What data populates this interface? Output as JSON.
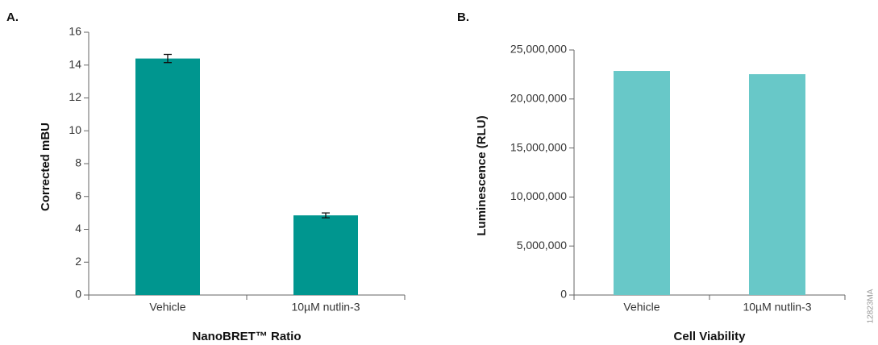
{
  "chart_data": [
    {
      "type": "bar",
      "panel": "A.",
      "xlabel": "NanoBRET™ Ratio",
      "ylabel": "Corrected mBU",
      "categories": [
        "Vehicle",
        "10µM nutlin-3"
      ],
      "values": [
        14.4,
        4.85
      ],
      "errors": [
        0.25,
        0.15
      ],
      "color": "#00968f",
      "ylim": [
        0,
        16
      ],
      "yticks": [
        0,
        2,
        4,
        6,
        8,
        10,
        12,
        14,
        16
      ]
    },
    {
      "type": "bar",
      "panel": "B.",
      "xlabel": "Cell Viability",
      "ylabel": "Luminescence (RLU)",
      "categories": [
        "Vehicle",
        "10µM nutlin-3"
      ],
      "values": [
        22860000,
        22530000
      ],
      "color": "#68c8c8",
      "ylim": [
        0,
        25000000
      ],
      "yticks": [
        0,
        {
          "value": 5000000,
          "label": "5,000,000"
        },
        {
          "value": 10000000,
          "label": "10,000,000"
        },
        {
          "value": 15000000,
          "label": "15,000,000"
        },
        {
          "value": 20000000,
          "label": "20,000,000"
        },
        {
          "value": 25000000,
          "label": "25,000,000"
        }
      ]
    }
  ],
  "figure_code": "12823MA"
}
